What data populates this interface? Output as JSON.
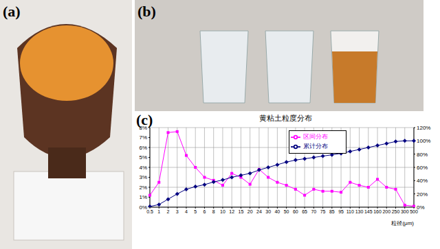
{
  "panel_labels": [
    "(a)",
    "(b)",
    "(c)"
  ],
  "chart_data": {
    "type": "line",
    "title": "黄粘土粒度分布",
    "x_label": "粒径(μm)",
    "categories": [
      "0.5",
      "1",
      "2",
      "3",
      "4",
      "5",
      "6",
      "8",
      "10",
      "12",
      "15",
      "20",
      "24",
      "30",
      "40",
      "50",
      "60",
      "65",
      "70",
      "75",
      "85",
      "95",
      "110",
      "130",
      "145",
      "160",
      "200",
      "250",
      "300",
      "500"
    ],
    "series": [
      {
        "name": "区间分布",
        "color": "#ff00ff",
        "marker": "square",
        "axis": "y",
        "values": [
          1.2,
          2.5,
          7.5,
          7.6,
          5.2,
          4.0,
          3.0,
          2.7,
          2.2,
          3.4,
          3.0,
          2.3,
          3.8,
          3.0,
          2.5,
          2.2,
          1.8,
          1.2,
          1.8,
          1.6,
          1.6,
          1.5,
          2.5,
          2.2,
          2.0,
          2.8,
          2.0,
          1.8,
          0.2,
          0.1
        ]
      },
      {
        "name": "累计分布",
        "color": "#000080",
        "marker": "diamond",
        "axis": "y2",
        "values": [
          1,
          4,
          12,
          20,
          27,
          31,
          34,
          38,
          41,
          45,
          48,
          51,
          56,
          60,
          64,
          68,
          71,
          73,
          75,
          77,
          79,
          81,
          84,
          87,
          90,
          93,
          96,
          99,
          100,
          100
        ]
      }
    ],
    "ylim": [
      0,
      8
    ],
    "yticks": [
      {
        "value": 0,
        "label": "0%"
      },
      {
        "value": 1,
        "label": "1%"
      },
      {
        "value": 2,
        "label": "2%"
      },
      {
        "value": 3,
        "label": "3%"
      },
      {
        "value": 4,
        "label": "4%"
      },
      {
        "value": 5,
        "label": "5%"
      },
      {
        "value": 6,
        "label": "6%"
      },
      {
        "value": 7,
        "label": "7%"
      },
      {
        "value": 8,
        "label": "8%"
      }
    ],
    "y2lim": [
      0,
      120
    ],
    "y2ticks": [
      {
        "value": 0,
        "label": "0%"
      },
      {
        "value": 20,
        "label": "20%"
      },
      {
        "value": 40,
        "label": "40%"
      },
      {
        "value": 60,
        "label": "60%"
      },
      {
        "value": 80,
        "label": "80%"
      },
      {
        "value": 100,
        "label": "100%"
      },
      {
        "value": 120,
        "label": "120%"
      }
    ],
    "grid": true,
    "legend": "upper center"
  }
}
